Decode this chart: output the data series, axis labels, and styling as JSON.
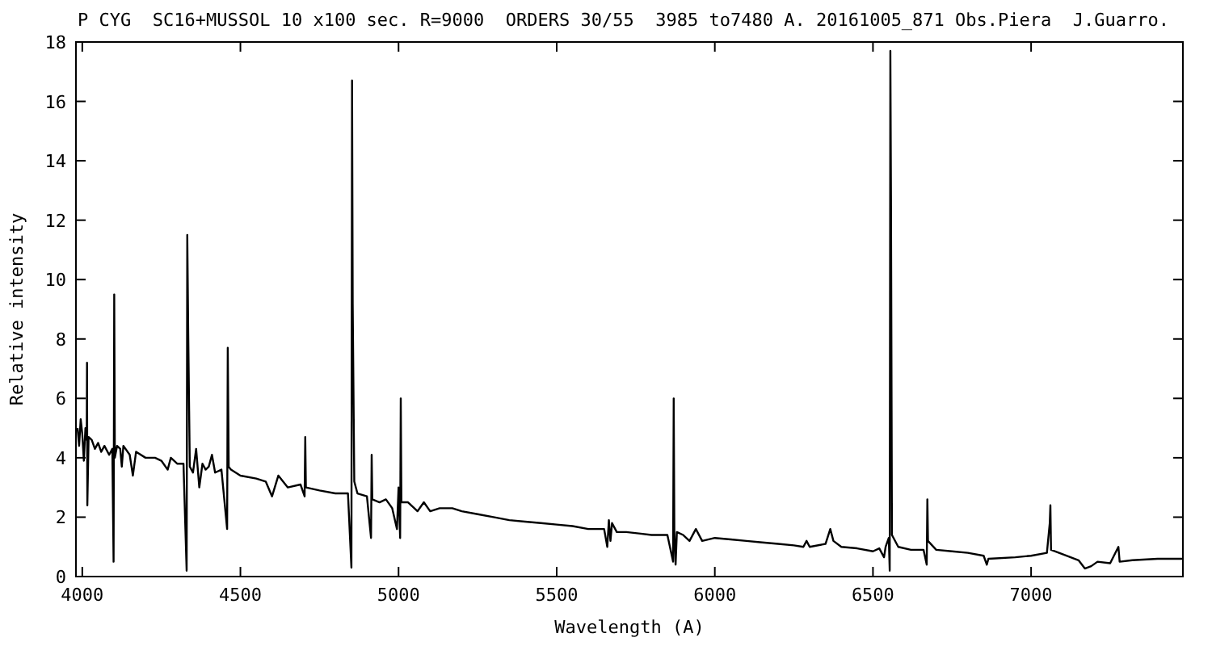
{
  "chart_data": {
    "type": "line",
    "title": "P CYG  SC16+MUSSOL 10 x100 sec. R=9000  ORDERS 30/55  3985 to7480 A. 20161005_871 Obs.Piera  J.Guarro.",
    "xlabel": "Wavelength (A)",
    "ylabel": "Relative intensity",
    "xlim": [
      3980,
      7480
    ],
    "xticks": [
      4000,
      4500,
      5000,
      5500,
      6000,
      6500,
      7000
    ],
    "ylim": [
      0,
      18
    ],
    "yticks": [
      0,
      2,
      4,
      6,
      8,
      10,
      12,
      14,
      16,
      18
    ],
    "grid": false,
    "marker": "none",
    "line_style": "solid",
    "series": [
      {
        "color": "#000000",
        "x": [
          3985,
          3990,
          3995,
          4000,
          4005,
          4010,
          4014,
          4015,
          4016,
          4020,
          4030,
          4040,
          4050,
          4060,
          4070,
          4085,
          4095,
          4099,
          4101,
          4103,
          4110,
          4120,
          4125,
          4130,
          4150,
          4160,
          4170,
          4200,
          4230,
          4250,
          4270,
          4280,
          4300,
          4320,
          4330,
          4332,
          4335,
          4340,
          4350,
          4360,
          4370,
          4380,
          4390,
          4400,
          4410,
          4420,
          4440,
          4458,
          4460,
          4463,
          4470,
          4500,
          4550,
          4580,
          4600,
          4620,
          4650,
          4690,
          4703,
          4705,
          4707,
          4750,
          4800,
          4840,
          4851,
          4853,
          4855,
          4860,
          4870,
          4900,
          4913,
          4915,
          4917,
          4940,
          4960,
          4980,
          4995,
          5000,
          5005,
          5007,
          5009,
          5030,
          5060,
          5080,
          5100,
          5130,
          5170,
          5200,
          5250,
          5300,
          5350,
          5400,
          5450,
          5500,
          5550,
          5600,
          5650,
          5660,
          5665,
          5670,
          5675,
          5690,
          5720,
          5760,
          5800,
          5850,
          5868,
          5870,
          5872,
          5876,
          5880,
          5900,
          5920,
          5940,
          5960,
          6000,
          6050,
          6100,
          6150,
          6200,
          6250,
          6280,
          6290,
          6300,
          6350,
          6365,
          6375,
          6400,
          6450,
          6500,
          6520,
          6535,
          6540,
          6550,
          6553,
          6555,
          6557,
          6560,
          6580,
          6620,
          6660,
          6670,
          6672,
          6674,
          6700,
          6750,
          6800,
          6850,
          6860,
          6865,
          6950,
          7000,
          7050,
          7059,
          7061,
          7063,
          7100,
          7150,
          7170,
          7190,
          7210,
          7250,
          7276,
          7280,
          7320,
          7400,
          7450,
          7480
        ],
        "values": [
          5.0,
          4.4,
          5.3,
          4.8,
          3.9,
          5.0,
          4.6,
          7.2,
          2.4,
          4.7,
          4.6,
          4.3,
          4.5,
          4.2,
          4.4,
          4.1,
          4.3,
          0.5,
          9.5,
          4.0,
          4.4,
          4.3,
          3.7,
          4.4,
          4.1,
          3.4,
          4.2,
          4.0,
          4.0,
          3.9,
          3.6,
          4.0,
          3.8,
          3.8,
          0.2,
          11.5,
          8.2,
          3.7,
          3.5,
          4.3,
          3.0,
          3.8,
          3.6,
          3.7,
          4.1,
          3.5,
          3.6,
          1.6,
          7.7,
          3.7,
          3.6,
          3.4,
          3.3,
          3.2,
          2.7,
          3.4,
          3.0,
          3.1,
          2.7,
          4.7,
          3.0,
          2.9,
          2.8,
          2.8,
          0.3,
          16.7,
          9.2,
          3.2,
          2.8,
          2.7,
          1.3,
          4.1,
          2.6,
          2.5,
          2.6,
          2.3,
          1.6,
          3.0,
          1.3,
          6.0,
          2.5,
          2.5,
          2.2,
          2.5,
          2.2,
          2.3,
          2.3,
          2.2,
          2.1,
          2.0,
          1.9,
          1.85,
          1.8,
          1.75,
          1.7,
          1.6,
          1.6,
          1.0,
          1.9,
          1.2,
          1.8,
          1.5,
          1.5,
          1.45,
          1.4,
          1.4,
          0.5,
          6.0,
          1.5,
          0.4,
          1.5,
          1.4,
          1.2,
          1.6,
          1.2,
          1.3,
          1.25,
          1.2,
          1.15,
          1.1,
          1.05,
          1.0,
          1.2,
          1.0,
          1.1,
          1.6,
          1.2,
          1.0,
          0.95,
          0.85,
          0.95,
          0.65,
          1.0,
          1.3,
          0.2,
          17.7,
          12.7,
          1.4,
          1.0,
          0.9,
          0.9,
          0.4,
          2.6,
          1.2,
          0.9,
          0.85,
          0.8,
          0.7,
          0.4,
          0.6,
          0.65,
          0.7,
          0.8,
          1.8,
          2.4,
          0.9,
          0.75,
          0.55,
          0.27,
          0.35,
          0.5,
          0.45,
          1.0,
          0.5,
          0.55,
          0.6,
          0.6,
          0.6
        ]
      }
    ]
  }
}
